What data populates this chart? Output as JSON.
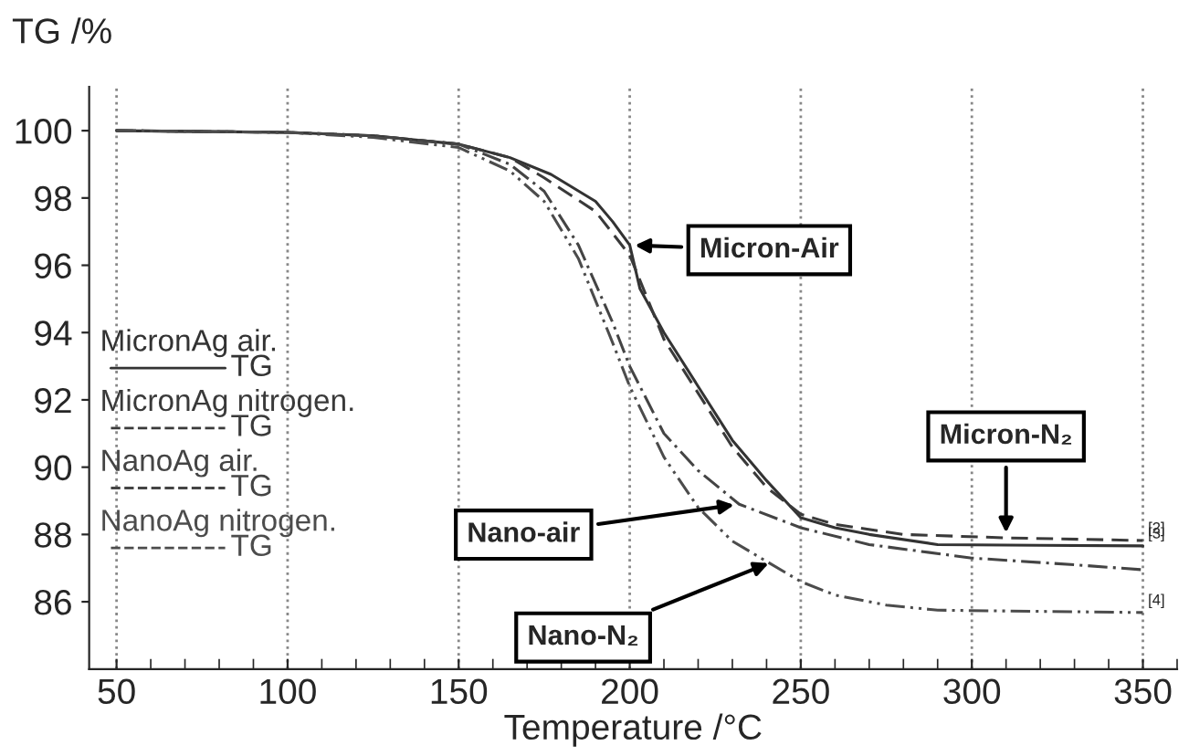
{
  "chart_data": {
    "type": "line",
    "xlabel": "Temperature /°C",
    "ylabel": "TG /%",
    "xlim": [
      42,
      360
    ],
    "ylim": [
      84,
      101.3
    ],
    "xticks": [
      50,
      100,
      150,
      200,
      250,
      300,
      350
    ],
    "yticks": [
      86,
      88,
      90,
      92,
      94,
      96,
      98,
      100
    ],
    "grid": "x",
    "legend": "left",
    "marker": "none",
    "series": [
      {
        "name": "MicronAg air.",
        "color": "#333333",
        "line_style": "solid",
        "x": [
          50,
          100,
          125,
          150,
          165,
          177,
          190,
          195,
          200,
          203,
          210,
          220,
          230,
          240,
          250,
          260,
          270,
          290,
          320,
          350
        ],
        "values": [
          100,
          99.95,
          99.85,
          99.6,
          99.2,
          98.7,
          97.9,
          97.3,
          96.6,
          95.3,
          94.0,
          92.4,
          90.8,
          89.6,
          88.5,
          88.2,
          88.0,
          87.7,
          87.68,
          87.66
        ]
      },
      {
        "name": "MicronAg nitrogen.",
        "color": "#3a3a3a",
        "line_style": "dashed",
        "x": [
          50,
          100,
          125,
          150,
          165,
          175,
          190,
          200,
          210,
          220,
          230,
          240,
          250,
          260,
          280,
          310,
          350
        ],
        "values": [
          100,
          99.95,
          99.85,
          99.6,
          99.2,
          98.6,
          97.6,
          96.3,
          93.8,
          92.2,
          90.6,
          89.4,
          88.6,
          88.3,
          88.0,
          87.9,
          87.82
        ]
      },
      {
        "name": "NanoAg air.",
        "color": "#444444",
        "line_style": "dashdot",
        "x": [
          50,
          100,
          125,
          150,
          165,
          175,
          185,
          195,
          200,
          210,
          220,
          232,
          250,
          270,
          300,
          330,
          350
        ],
        "values": [
          100,
          99.95,
          99.85,
          99.6,
          99.0,
          98.2,
          96.6,
          94.3,
          93.0,
          91.0,
          89.9,
          88.9,
          88.2,
          87.7,
          87.3,
          87.1,
          86.95
        ]
      },
      {
        "name": "NanoAg nitrogen.",
        "color": "#4c4c4c",
        "line_style": "dashdotdot",
        "x": [
          50,
          100,
          125,
          150,
          165,
          175,
          185,
          195,
          200,
          210,
          220,
          230,
          240,
          250,
          260,
          275,
          290,
          350
        ],
        "values": [
          100,
          99.95,
          99.8,
          99.5,
          98.8,
          97.9,
          96.2,
          93.7,
          92.4,
          90.3,
          88.8,
          87.8,
          87.2,
          86.6,
          86.2,
          85.9,
          85.75,
          85.68
        ]
      }
    ],
    "annotations": [
      "TG",
      "TG",
      "TG",
      "TG",
      {
        "text": "Micron-Air",
        "x": 200,
        "y": 96.6
      },
      {
        "text": "Micron-N₂",
        "x": 310,
        "y": 87.9
      },
      {
        "text": "Nano-air",
        "x": 232,
        "y": 88.9
      },
      {
        "text": "Nano-N₂",
        "x": 242,
        "y": 87.2
      },
      {
        "text": "[2]",
        "x": 350,
        "y": 87.82
      },
      {
        "text": "[3]",
        "x": 350,
        "y": 87.66
      },
      {
        "text": "[4]",
        "x": 350,
        "y": 85.68
      }
    ]
  }
}
